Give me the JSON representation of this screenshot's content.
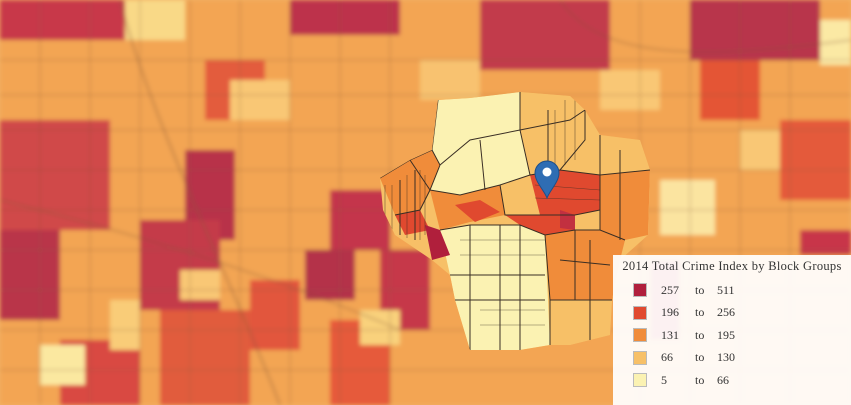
{
  "map": {
    "colors": {
      "very_high": "#b01f3c",
      "high": "#e0492f",
      "medium": "#f08c3a",
      "low": "#f7c067",
      "very_low": "#fbf2b2",
      "boundary": "#4a3b2e",
      "marker": "#2f6db3"
    },
    "marker_icon": "map-pin-icon"
  },
  "legend": {
    "title": "2014 Total Crime Index by Block Groups",
    "items": [
      {
        "low": "257",
        "to": "to",
        "high": "511",
        "color": "#b01f3c"
      },
      {
        "low": "196",
        "to": "to",
        "high": "256",
        "color": "#e0492f"
      },
      {
        "low": "131",
        "to": "to",
        "high": "195",
        "color": "#f08c3a"
      },
      {
        "low": "66",
        "to": "to",
        "high": "130",
        "color": "#f7c067"
      },
      {
        "low": "5",
        "to": "to",
        "high": "66",
        "color": "#fbf2b2"
      }
    ]
  }
}
